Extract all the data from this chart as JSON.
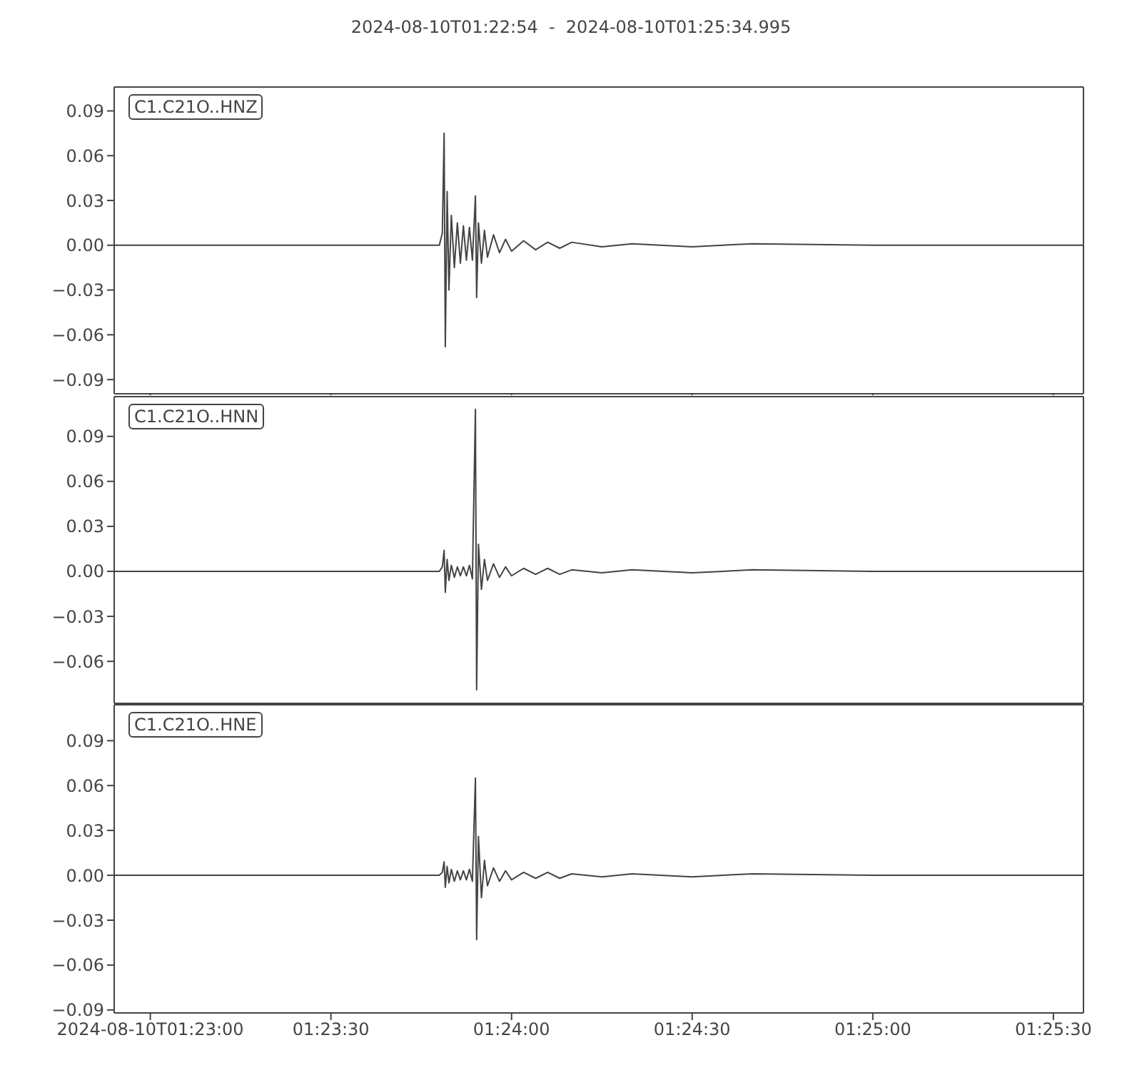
{
  "chart_data": [
    {
      "type": "line",
      "title": "2024-08-10T01:22:54  -  2024-08-10T01:25:34.995",
      "x": [
        1.381667,
        1.388889,
        1.396667,
        1.396806,
        1.396889,
        1.396944,
        1.397028,
        1.397111,
        1.397222,
        1.397361,
        1.3975,
        1.397639,
        1.397778,
        1.397917,
        1.398056,
        1.398194,
        1.398333,
        1.398389,
        1.398472,
        1.398611,
        1.39875,
        1.398889,
        1.399167,
        1.399444,
        1.399722,
        1.4,
        1.400556,
        1.401111,
        1.401667,
        1.402222,
        1.402778,
        1.404167,
        1.405556,
        1.408333,
        1.411111,
        1.416667,
        1.426387
      ],
      "series": [
        {
          "name": "C1.C21O..HNZ",
          "color": "#444444",
          "values": [
            0,
            0,
            0,
            0.008,
            0.075,
            -0.068,
            0.036,
            -0.03,
            0.02,
            -0.015,
            0.015,
            -0.012,
            0.013,
            -0.01,
            0.012,
            -0.01,
            0.033,
            -0.035,
            0.015,
            -0.012,
            0.01,
            -0.008,
            0.007,
            -0.005,
            0.004,
            -0.004,
            0.003,
            -0.003,
            0.002,
            -0.002,
            0.002,
            -0.001,
            0.001,
            -0.001,
            0.001,
            0,
            0
          ]
        }
      ],
      "xlim": [
        1.381667,
        1.426387
      ],
      "xticks": [
        {
          "value": 1.383333,
          "label": null
        },
        {
          "value": 1.391667,
          "label": null
        },
        {
          "value": 1.4,
          "label": null
        },
        {
          "value": 1.408333,
          "label": null
        },
        {
          "value": 1.416667,
          "label": null
        },
        {
          "value": 1.425,
          "label": null
        }
      ],
      "ylim": [
        -0.0995,
        0.106
      ],
      "yticks": [
        {
          "value": -0.09,
          "label": "−0.09"
        },
        {
          "value": -0.06,
          "label": "−0.06"
        },
        {
          "value": -0.03,
          "label": "−0.03"
        },
        {
          "value": 0,
          "label": "0.00"
        },
        0.03,
        0.06,
        0.09
      ],
      "tick_labels": "y",
      "legend": "top left",
      "grid": false,
      "marker": "none",
      "line_style": "solid"
    },
    {
      "type": "line",
      "x": [
        1.381667,
        1.388889,
        1.396667,
        1.396806,
        1.396889,
        1.396944,
        1.397028,
        1.397111,
        1.397222,
        1.397361,
        1.3975,
        1.397639,
        1.397778,
        1.397917,
        1.398056,
        1.398194,
        1.398333,
        1.398389,
        1.398472,
        1.398611,
        1.39875,
        1.398889,
        1.399167,
        1.399444,
        1.399722,
        1.4,
        1.400556,
        1.401111,
        1.401667,
        1.402222,
        1.402778,
        1.404167,
        1.405556,
        1.408333,
        1.411111,
        1.416667,
        1.426387
      ],
      "series": [
        {
          "name": "C1.C21O..HNN",
          "color": "#444444",
          "values": [
            0,
            0,
            0,
            0.003,
            0.014,
            -0.014,
            0.008,
            -0.006,
            0.004,
            -0.004,
            0.003,
            -0.003,
            0.003,
            -0.003,
            0.004,
            -0.005,
            0.108,
            -0.079,
            0.018,
            -0.012,
            0.008,
            -0.006,
            0.005,
            -0.004,
            0.003,
            -0.003,
            0.002,
            -0.002,
            0.002,
            -0.002,
            0.001,
            -0.001,
            0.001,
            -0.001,
            0.001,
            0,
            0
          ]
        }
      ],
      "xlim": [
        1.381667,
        1.426387
      ],
      "xticks": [
        {
          "value": 1.383333,
          "label": null
        },
        {
          "value": 1.391667,
          "label": null
        },
        {
          "value": 1.4,
          "label": null
        },
        {
          "value": 1.408333,
          "label": null
        },
        {
          "value": 1.416667,
          "label": null
        },
        {
          "value": 1.425,
          "label": null
        }
      ],
      "ylim": [
        -0.088,
        0.1165
      ],
      "yticks": [
        {
          "value": -0.06,
          "label": "−0.06"
        },
        {
          "value": -0.03,
          "label": "−0.03"
        },
        {
          "value": 0,
          "label": "0.00"
        },
        0.03,
        0.06,
        0.09
      ],
      "tick_labels": "y",
      "legend": "top left",
      "grid": false,
      "marker": "none",
      "line_style": "solid"
    },
    {
      "type": "line",
      "x": [
        1.381667,
        1.388889,
        1.396667,
        1.396806,
        1.396889,
        1.396944,
        1.397028,
        1.397111,
        1.397222,
        1.397361,
        1.3975,
        1.397639,
        1.397778,
        1.397917,
        1.398056,
        1.398194,
        1.398333,
        1.398389,
        1.398472,
        1.398611,
        1.39875,
        1.398889,
        1.399167,
        1.399444,
        1.399722,
        1.4,
        1.400556,
        1.401111,
        1.401667,
        1.402222,
        1.402778,
        1.404167,
        1.405556,
        1.408333,
        1.411111,
        1.416667,
        1.426387
      ],
      "series": [
        {
          "name": "C1.C21O..HNE",
          "color": "#444444",
          "values": [
            0,
            0,
            0,
            0.002,
            0.009,
            -0.008,
            0.006,
            -0.005,
            0.004,
            -0.004,
            0.003,
            -0.003,
            0.003,
            -0.003,
            0.004,
            -0.004,
            0.065,
            -0.043,
            0.026,
            -0.015,
            0.01,
            -0.007,
            0.005,
            -0.004,
            0.003,
            -0.003,
            0.002,
            -0.002,
            0.002,
            -0.002,
            0.001,
            -0.001,
            0.001,
            -0.001,
            0.001,
            0,
            0
          ]
        }
      ],
      "xlim": [
        1.381667,
        1.426387
      ],
      "xticks": [
        {
          "value": 1.383333,
          "label": "2024-08-10T01:23:00"
        },
        {
          "value": 1.391667,
          "label": "01:23:30"
        },
        {
          "value": 1.4,
          "label": "01:24:00"
        },
        {
          "value": 1.408333,
          "label": "01:24:30"
        },
        {
          "value": 1.416667,
          "label": "01:25:00"
        },
        {
          "value": 1.425,
          "label": "01:25:30"
        }
      ],
      "ylim": [
        -0.092,
        0.114
      ],
      "yticks": [
        {
          "value": -0.09,
          "label": "−0.09"
        },
        {
          "value": -0.06,
          "label": "−0.06"
        },
        {
          "value": -0.03,
          "label": "−0.03"
        },
        {
          "value": 0,
          "label": "0.00"
        },
        0.03,
        0.06,
        0.09
      ],
      "legend": "top left",
      "grid": false,
      "marker": "none",
      "line_style": "solid"
    }
  ]
}
